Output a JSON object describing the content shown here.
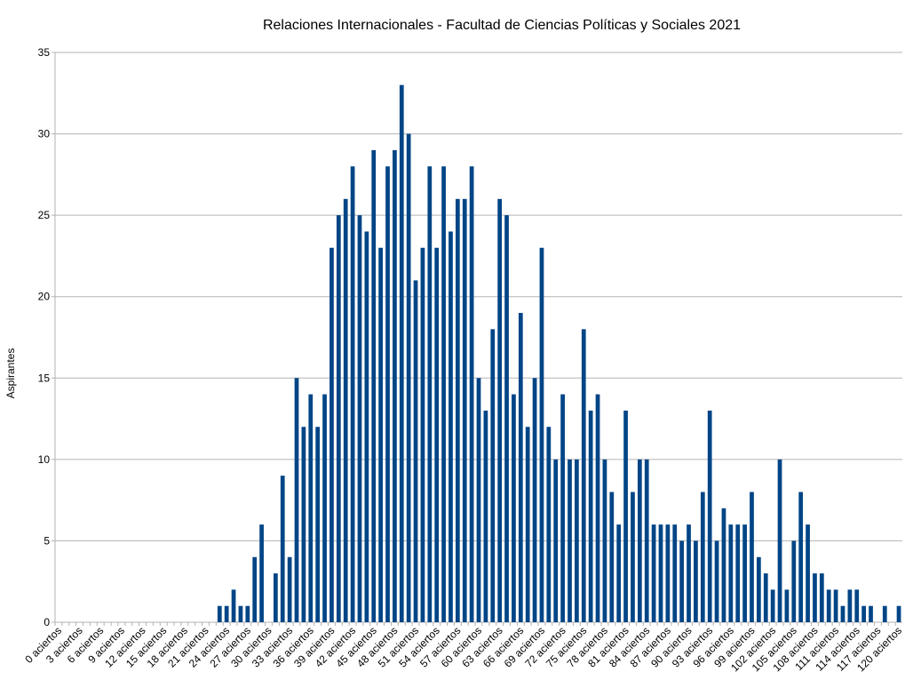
{
  "chart_data": {
    "type": "bar",
    "title": "Relaciones Internacionales - Facultad de Ciencias Políticas y Sociales 2021",
    "y_label": "Aspirantes",
    "categories": [
      "0 aciertos",
      null,
      null,
      "3 aciertos",
      null,
      null,
      "6 aciertos",
      null,
      null,
      "9 aciertos",
      null,
      null,
      "12 aciertos",
      null,
      null,
      "15 aciertos",
      null,
      null,
      "18 aciertos",
      null,
      null,
      "21 aciertos",
      null,
      null,
      "24 aciertos",
      null,
      null,
      "27 aciertos",
      null,
      null,
      "30 aciertos",
      null,
      null,
      "33 aciertos",
      null,
      null,
      "36 aciertos",
      null,
      null,
      "39 aciertos",
      null,
      null,
      "42 aciertos",
      null,
      null,
      "45 aciertos",
      null,
      null,
      "48 aciertos",
      null,
      null,
      "51 aciertos",
      null,
      null,
      "54 aciertos",
      null,
      null,
      "57 aciertos",
      null,
      null,
      "60 aciertos",
      null,
      null,
      "63 aciertos",
      null,
      null,
      "66 aciertos",
      null,
      null,
      "69 aciertos",
      null,
      null,
      "72 aciertos",
      null,
      null,
      "75 aciertos",
      null,
      null,
      "78 aciertos",
      null,
      null,
      "81 aciertos",
      null,
      null,
      "84 aciertos",
      null,
      null,
      "87 aciertos",
      null,
      null,
      "90 aciertos",
      null,
      null,
      "93 aciertos",
      null,
      null,
      "96 aciertos",
      null,
      null,
      "99 aciertos",
      null,
      null,
      "102 aciertos",
      null,
      null,
      "105 aciertos",
      null,
      null,
      "108 aciertos",
      null,
      null,
      "111 aciertos",
      null,
      null,
      "114 aciertos",
      null,
      null,
      "117 aciertos",
      null,
      null,
      "120 aciertos"
    ],
    "values": [
      0,
      0,
      0,
      0,
      0,
      0,
      0,
      0,
      0,
      0,
      0,
      0,
      0,
      0,
      0,
      0,
      0,
      0,
      0,
      0,
      0,
      0,
      0,
      1,
      1,
      2,
      1,
      1,
      4,
      6,
      0,
      3,
      9,
      4,
      15,
      12,
      14,
      12,
      14,
      23,
      25,
      26,
      28,
      25,
      24,
      29,
      23,
      28,
      29,
      33,
      30,
      21,
      23,
      28,
      23,
      28,
      24,
      26,
      26,
      28,
      15,
      13,
      18,
      26,
      25,
      14,
      19,
      12,
      15,
      23,
      12,
      10,
      14,
      10,
      10,
      18,
      13,
      14,
      10,
      8,
      6,
      13,
      8,
      10,
      10,
      6,
      6,
      6,
      6,
      5,
      6,
      5,
      8,
      13,
      5,
      7,
      6,
      6,
      6,
      8,
      4,
      3,
      2,
      10,
      2,
      5,
      8,
      6,
      3,
      3,
      2,
      2,
      1,
      2,
      2,
      1,
      1,
      0,
      1,
      0,
      1
    ],
    "color": "#004586",
    "ylim": [
      0,
      35
    ],
    "yticks": [
      0,
      5,
      10,
      15,
      20,
      25,
      30,
      35
    ],
    "grid": true
  }
}
